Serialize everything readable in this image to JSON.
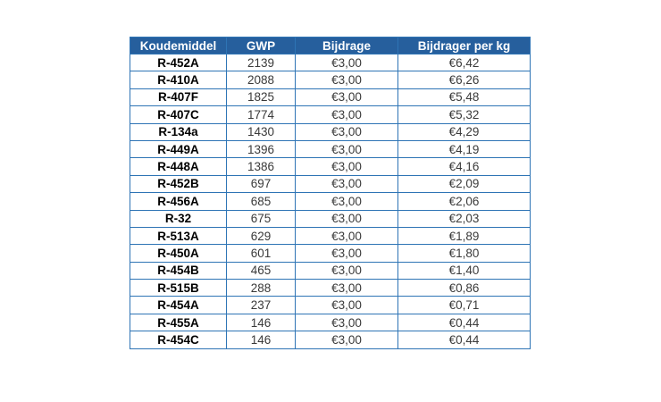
{
  "colors": {
    "header_bg": "#265F9D",
    "header_text": "#FFFFFF",
    "border": "#2E74B5",
    "cell_text": "#3A3A3A",
    "refrigerant_text": "#000000",
    "page_bg": "#FFFFFF"
  },
  "chart_data": {
    "type": "table",
    "title": "",
    "columns": [
      "Koudemiddel",
      "GWP",
      "Bijdrage",
      "Bijdrager per kg"
    ],
    "rows": [
      [
        "R-452A",
        "2139",
        "€3,00",
        "€6,42"
      ],
      [
        "R-410A",
        "2088",
        "€3,00",
        "€6,26"
      ],
      [
        "R-407F",
        "1825",
        "€3,00",
        "€5,48"
      ],
      [
        "R-407C",
        "1774",
        "€3,00",
        "€5,32"
      ],
      [
        "R-134a",
        "1430",
        "€3,00",
        "€4,29"
      ],
      [
        "R-449A",
        "1396",
        "€3,00",
        "€4,19"
      ],
      [
        "R-448A",
        "1386",
        "€3,00",
        "€4,16"
      ],
      [
        "R-452B",
        "697",
        "€3,00",
        "€2,09"
      ],
      [
        "R-456A",
        "685",
        "€3,00",
        "€2,06"
      ],
      [
        "R-32",
        "675",
        "€3,00",
        "€2,03"
      ],
      [
        "R-513A",
        "629",
        "€3,00",
        "€1,89"
      ],
      [
        "R-450A",
        "601",
        "€3,00",
        "€1,80"
      ],
      [
        "R-454B",
        "465",
        "€3,00",
        "€1,40"
      ],
      [
        "R-515B",
        "288",
        "€3,00",
        "€0,86"
      ],
      [
        "R-454A",
        "237",
        "€3,00",
        "€0,71"
      ],
      [
        "R-455A",
        "146",
        "€3,00",
        "€0,44"
      ],
      [
        "R-454C",
        "146",
        "€3,00",
        "€0,44"
      ]
    ]
  }
}
